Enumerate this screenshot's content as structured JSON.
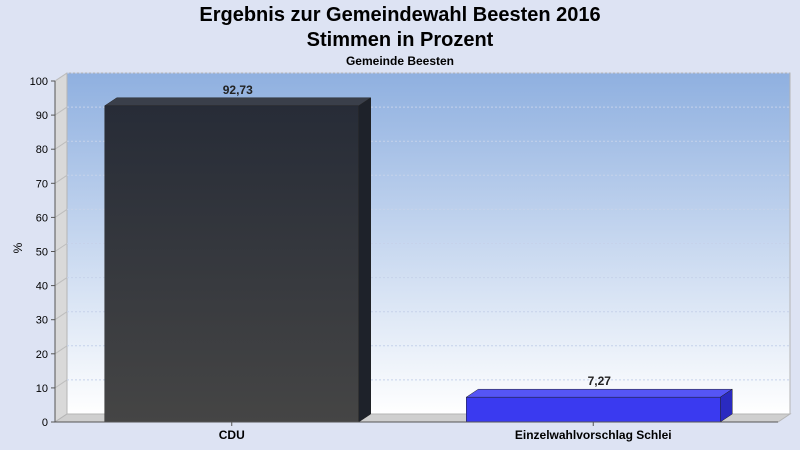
{
  "chart_data": {
    "type": "bar",
    "title": "Ergebnis zur Gemeindewahl Beesten 2016",
    "title_line2": "Stimmen in Prozent",
    "subtitle": "Gemeinde Beesten",
    "ylabel": "%",
    "xlabel": "",
    "ylim": [
      0,
      100
    ],
    "yticks": [
      0,
      10,
      20,
      30,
      40,
      50,
      60,
      70,
      80,
      90,
      100
    ],
    "grid": true,
    "categories": [
      "CDU",
      "Einzelwahlvorschlag Schlei"
    ],
    "values": [
      92.73,
      7.27
    ],
    "value_labels": [
      "92,73",
      "7,27"
    ],
    "colors": [
      "#2b2f38",
      "#3a3af0"
    ],
    "background_gradient": [
      "#8fb0e0",
      "#ffffff"
    ]
  }
}
